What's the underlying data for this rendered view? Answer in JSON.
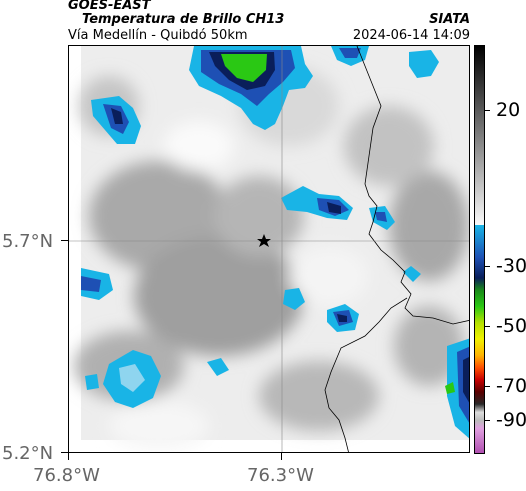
{
  "header": {
    "satellite": "GOES-EAST",
    "product": "Temperatura de Brillo CH13",
    "organization": "SIATA",
    "region": "Vía Medellín - Quibdó 50km",
    "datetime": "2024-06-14 14:09"
  },
  "axes": {
    "x_ticks": [
      "76.8°W",
      "76.3°W"
    ],
    "y_ticks": [
      "5.7°N",
      "5.2°N"
    ]
  },
  "colorbar": {
    "ticks": [
      "20",
      "-30",
      "-50",
      "-70",
      "-90"
    ],
    "unit": ""
  },
  "map": {
    "marker": "star-icon",
    "colors": {
      "gray_light": "#f2f2f2",
      "gray_mid": "#b8b8b8",
      "cyan": "#19b4e6",
      "blue": "#1e50b4",
      "navy": "#0a1e5a",
      "green": "#2ac814"
    }
  }
}
